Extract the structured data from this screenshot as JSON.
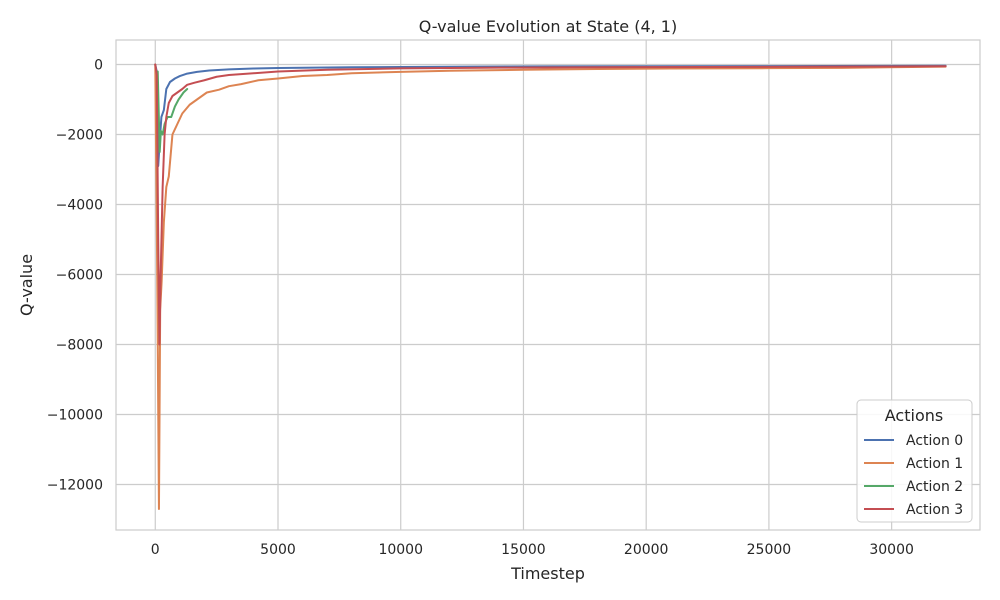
{
  "chart_data": {
    "type": "line",
    "title": "Q-value Evolution at State (4, 1)",
    "xlabel": "Timestep",
    "ylabel": "Q-value",
    "xlim": [
      -1600,
      33600
    ],
    "ylim": [
      -13300,
      700
    ],
    "xticks": [
      0,
      5000,
      10000,
      15000,
      20000,
      25000,
      30000
    ],
    "yticks": [
      0,
      -2000,
      -4000,
      -6000,
      -8000,
      -10000,
      -12000
    ],
    "grid": true,
    "legend": {
      "title": "Actions",
      "position": "lower-right"
    },
    "series": [
      {
        "name": "Action 0",
        "color": "#4c72b0",
        "points": [
          [
            0,
            0
          ],
          [
            60,
            -200
          ],
          [
            120,
            -2900
          ],
          [
            180,
            -2200
          ],
          [
            250,
            -1500
          ],
          [
            350,
            -1300
          ],
          [
            450,
            -700
          ],
          [
            600,
            -500
          ],
          [
            800,
            -400
          ],
          [
            1000,
            -330
          ],
          [
            1300,
            -260
          ],
          [
            1700,
            -210
          ],
          [
            2200,
            -170
          ],
          [
            3000,
            -140
          ],
          [
            4000,
            -115
          ],
          [
            5000,
            -100
          ],
          [
            6500,
            -90
          ],
          [
            8000,
            -80
          ],
          [
            10000,
            -70
          ],
          [
            13000,
            -60
          ],
          [
            16000,
            -55
          ],
          [
            20000,
            -50
          ],
          [
            25000,
            -45
          ],
          [
            30000,
            -40
          ],
          [
            32200,
            -35
          ]
        ]
      },
      {
        "name": "Action 1",
        "color": "#dd8452",
        "points": [
          [
            0,
            0
          ],
          [
            80,
            -6000
          ],
          [
            150,
            -12700
          ],
          [
            200,
            -7000
          ],
          [
            260,
            -6200
          ],
          [
            350,
            -4500
          ],
          [
            450,
            -3500
          ],
          [
            550,
            -3200
          ],
          [
            700,
            -2000
          ],
          [
            900,
            -1700
          ],
          [
            1100,
            -1400
          ],
          [
            1400,
            -1150
          ],
          [
            1700,
            -1000
          ],
          [
            2100,
            -800
          ],
          [
            2600,
            -720
          ],
          [
            3000,
            -620
          ],
          [
            3500,
            -560
          ],
          [
            4200,
            -450
          ],
          [
            5000,
            -400
          ],
          [
            6000,
            -330
          ],
          [
            7000,
            -300
          ],
          [
            8000,
            -250
          ],
          [
            10000,
            -210
          ],
          [
            12000,
            -180
          ],
          [
            15000,
            -150
          ],
          [
            18000,
            -130
          ],
          [
            21000,
            -115
          ],
          [
            25000,
            -105
          ],
          [
            28000,
            -95
          ],
          [
            32200,
            -60
          ]
        ]
      },
      {
        "name": "Action 2",
        "color": "#55a868",
        "points": [
          [
            100,
            -200
          ],
          [
            180,
            -2500
          ],
          [
            230,
            -1900
          ],
          [
            300,
            -2000
          ],
          [
            380,
            -1700
          ],
          [
            500,
            -1500
          ],
          [
            650,
            -1500
          ],
          [
            800,
            -1200
          ],
          [
            950,
            -1000
          ],
          [
            1150,
            -800
          ],
          [
            1300,
            -700
          ]
        ]
      },
      {
        "name": "Action 3",
        "color": "#c44e52",
        "points": [
          [
            0,
            0
          ],
          [
            60,
            -300
          ],
          [
            120,
            -5000
          ],
          [
            170,
            -8000
          ],
          [
            220,
            -6000
          ],
          [
            300,
            -3500
          ],
          [
            380,
            -2000
          ],
          [
            450,
            -1500
          ],
          [
            550,
            -1100
          ],
          [
            700,
            -900
          ],
          [
            900,
            -800
          ],
          [
            1100,
            -700
          ],
          [
            1300,
            -580
          ],
          [
            1600,
            -520
          ],
          [
            2000,
            -450
          ],
          [
            2500,
            -350
          ],
          [
            3000,
            -300
          ],
          [
            4000,
            -250
          ],
          [
            5000,
            -200
          ],
          [
            7000,
            -150
          ],
          [
            10000,
            -110
          ],
          [
            14000,
            -90
          ],
          [
            20000,
            -75
          ],
          [
            26000,
            -65
          ],
          [
            32200,
            -50
          ]
        ]
      }
    ]
  }
}
